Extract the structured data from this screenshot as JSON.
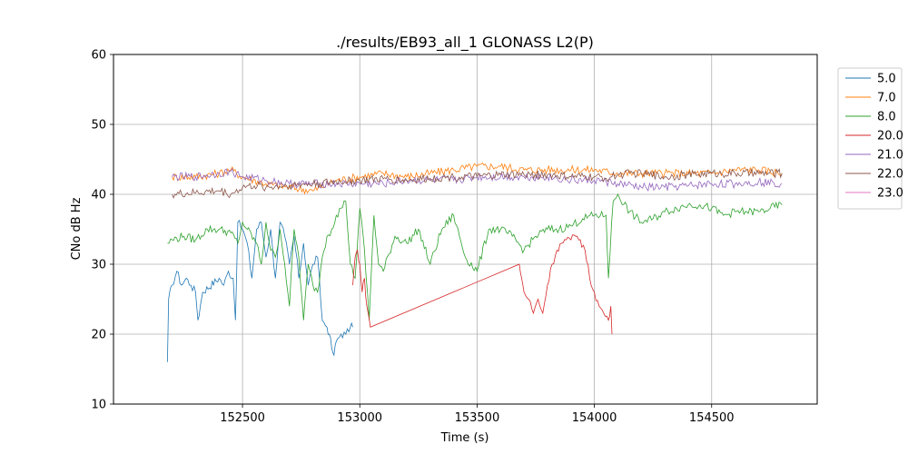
{
  "chart_data": {
    "type": "line",
    "title": "./results/EB93_all_1 GLONASS L2(P)",
    "xlabel": "Time (s)",
    "ylabel": "CNo dB Hz",
    "xlim": [
      151950,
      154950
    ],
    "ylim": [
      10,
      60
    ],
    "xticks": [
      152500,
      153000,
      153500,
      154000,
      154500
    ],
    "yticks": [
      10,
      20,
      30,
      40,
      50,
      60
    ],
    "grid": true,
    "legend_position": "outside-right-top",
    "series": [
      {
        "name": "5.0",
        "color": "#1f77b4",
        "x": [
          152180,
          152185,
          152200,
          152220,
          152240,
          152260,
          152280,
          152300,
          152310,
          152320,
          152330,
          152400,
          152420,
          152440,
          152460,
          152470,
          152480,
          152500,
          152520,
          152540,
          152560,
          152580,
          152600,
          152620,
          152640,
          152660,
          152680,
          152700,
          152720,
          152740,
          152760,
          152780,
          152800,
          152820,
          152840,
          152860,
          152870,
          152880,
          152890,
          152900,
          152920,
          152940,
          152960,
          152970
        ],
        "y": [
          16,
          25,
          27,
          29,
          27,
          28,
          27,
          26,
          22,
          24,
          26,
          28,
          27,
          29,
          28,
          22,
          36,
          35,
          33,
          28,
          35,
          36,
          31,
          35,
          28,
          36,
          34,
          30,
          34,
          28,
          33,
          27,
          30,
          31,
          22,
          21,
          20,
          18,
          17,
          19,
          20,
          20,
          21,
          21
        ]
      },
      {
        "name": "7.0",
        "color": "#ff7f0e",
        "x": [
          152200,
          152300,
          152400,
          152450,
          152500,
          152600,
          152700,
          152800,
          152900,
          153000,
          153100,
          153200,
          153300,
          153400,
          153500,
          153600,
          153700,
          153800,
          153900,
          154000,
          154100,
          154200,
          154300,
          154400,
          154500,
          154600,
          154700,
          154800
        ],
        "y": [
          42.5,
          42.5,
          43,
          43.5,
          42.5,
          41.5,
          41,
          40.5,
          42,
          42.5,
          43,
          42.5,
          43,
          43.5,
          44,
          44,
          43.5,
          43.5,
          43.5,
          43.5,
          43,
          43,
          43,
          43,
          43,
          43.5,
          43.5,
          43
        ]
      },
      {
        "name": "8.0",
        "color": "#2ca02c",
        "x": [
          152180,
          152200,
          152250,
          152300,
          152350,
          152400,
          152450,
          152480,
          152500,
          152520,
          152560,
          152580,
          152600,
          152620,
          152640,
          152660,
          152680,
          152700,
          152720,
          152740,
          152760,
          152780,
          152800,
          152820,
          152840,
          152860,
          152880,
          152900,
          152920,
          152940,
          152960,
          152980,
          153000,
          153020,
          153040,
          153060,
          153080,
          153100,
          153150,
          153200,
          153250,
          153300,
          153350,
          153400,
          153450,
          153500,
          153550,
          153600,
          153650,
          153700,
          153750,
          153800,
          153850,
          153900,
          153950,
          154000,
          154050,
          154060,
          154080,
          154100,
          154150,
          154200,
          154250,
          154300,
          154350,
          154400,
          154450,
          154500,
          154550,
          154600,
          154650,
          154700,
          154750,
          154800
        ],
        "y": [
          33,
          33.5,
          34,
          33.5,
          35,
          35,
          34.5,
          33,
          36,
          35,
          33,
          30,
          36,
          32,
          31,
          35,
          30,
          24,
          35,
          31,
          22,
          30,
          27,
          26,
          31,
          34,
          35,
          37,
          38,
          39,
          30,
          28,
          38,
          32,
          22,
          37,
          30,
          29,
          34,
          33,
          35,
          30,
          35,
          37,
          31,
          29,
          35,
          35,
          34,
          32,
          34,
          35,
          35,
          35.5,
          36.5,
          37,
          37,
          28,
          39,
          40,
          37.5,
          36,
          36.5,
          37.5,
          38,
          38.5,
          38.5,
          38,
          37,
          37.5,
          37.5,
          37.5,
          38,
          38.5
        ]
      },
      {
        "name": "20.0",
        "color": "#d62728",
        "x": [
          152970,
          152980,
          152990,
          153000,
          153010,
          153020,
          153030,
          153045,
          153680,
          153690,
          153700,
          153720,
          153740,
          153760,
          153780,
          153800,
          153820,
          153840,
          153860,
          153880,
          153900,
          153920,
          153940,
          153960,
          153980,
          154000,
          154020,
          154040,
          154060,
          154070,
          154075
        ],
        "y": [
          27,
          31,
          32,
          30,
          26,
          28,
          24,
          21,
          30,
          28,
          26,
          25,
          23,
          25,
          23,
          27,
          30,
          32,
          33,
          33.5,
          33.5,
          34,
          33.5,
          32,
          28,
          26,
          24,
          23,
          22,
          24,
          20
        ]
      },
      {
        "name": "21.0",
        "color": "#9467bd",
        "x": [
          152200,
          152300,
          152400,
          152450,
          152500,
          152600,
          152700,
          152800,
          152900,
          153000,
          153100,
          153200,
          153300,
          153400,
          153500,
          153600,
          153700,
          153800,
          153900,
          154000,
          154050,
          154100,
          154200,
          154300,
          154400,
          154500,
          154600,
          154700,
          154800
        ],
        "y": [
          42.5,
          42.5,
          43,
          43.3,
          42.5,
          42,
          41.5,
          41.5,
          41.5,
          41.5,
          41.5,
          42,
          42,
          42,
          42.5,
          42.5,
          42.5,
          42.5,
          42,
          42,
          41.8,
          41.5,
          41,
          41,
          41.2,
          41.5,
          41.5,
          41.8,
          41.5
        ]
      },
      {
        "name": "22.0",
        "color": "#8c564b",
        "x": [
          152200,
          152300,
          152400,
          152450,
          152500,
          152550,
          152600,
          152700,
          152800,
          152900,
          153000,
          153100,
          153200,
          153300,
          153400,
          153500,
          153600,
          153700,
          153800,
          153900,
          154000,
          154050,
          154100,
          154150,
          154200,
          154300,
          154400,
          154500,
          154600,
          154700,
          154800
        ],
        "y": [
          40,
          40.2,
          40.5,
          40,
          41,
          41.2,
          41,
          41.3,
          41.5,
          41.8,
          42,
          42.2,
          42,
          42.3,
          42.5,
          42.5,
          42.8,
          42.8,
          42.8,
          42.5,
          42.5,
          42.3,
          42.8,
          43,
          43,
          42.5,
          42.8,
          43,
          43,
          43,
          43
        ]
      },
      {
        "name": "23.0",
        "color": "#e377c2",
        "x": [],
        "y": []
      }
    ]
  }
}
